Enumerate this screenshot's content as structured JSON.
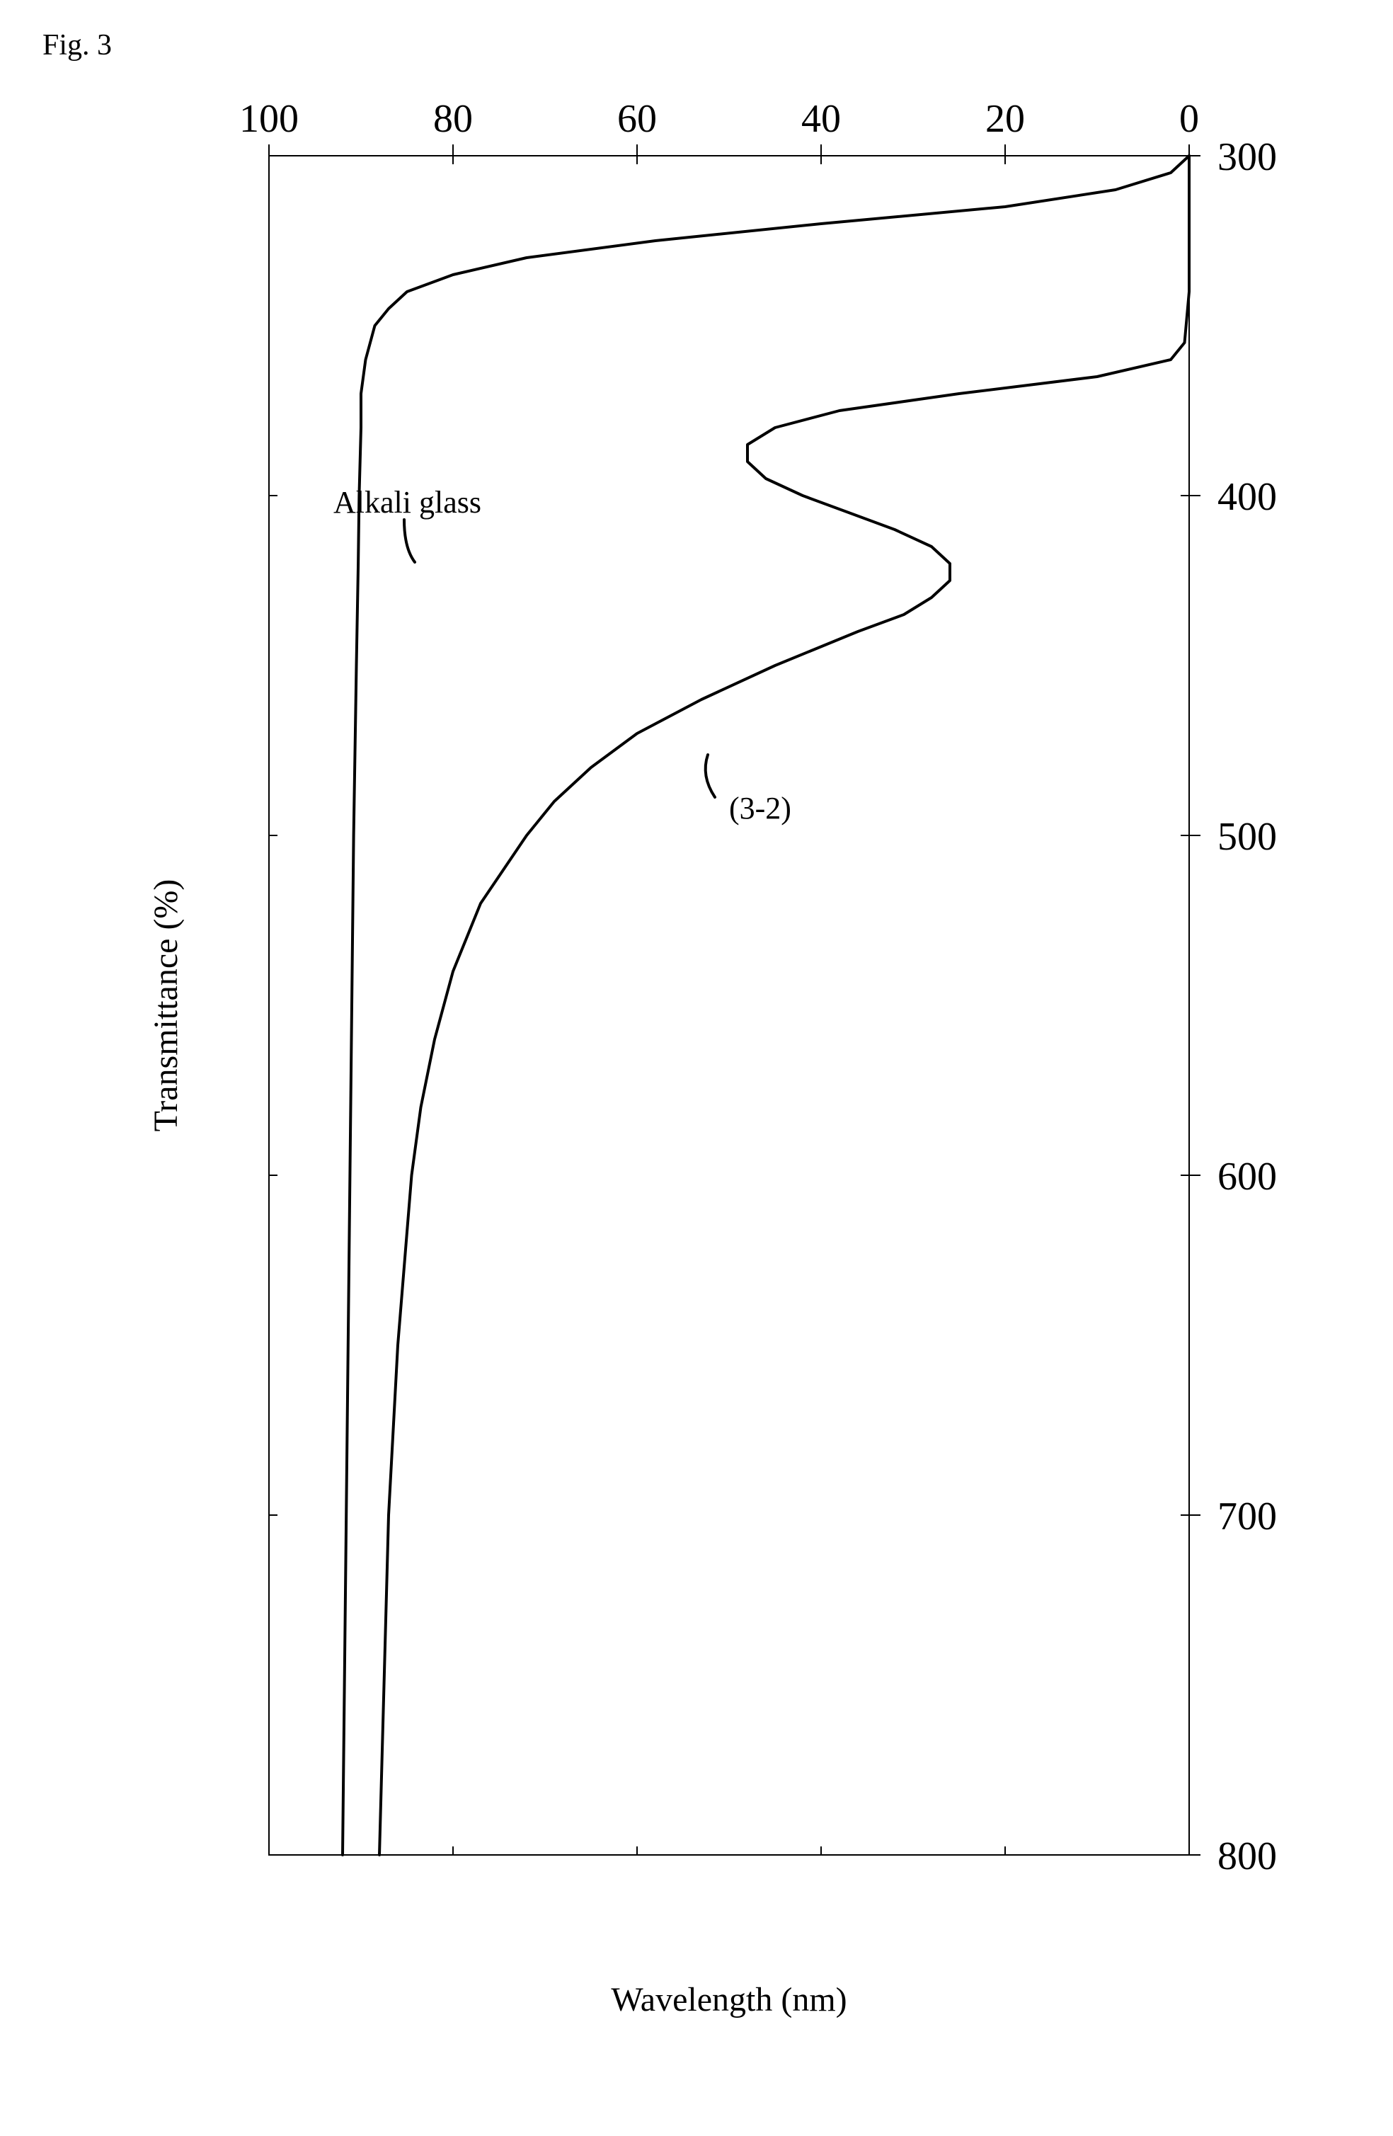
{
  "figure": {
    "label": "Fig. 3",
    "rotated": true,
    "aspect_note": "Chart is rotated 90° — x-axis (Wavelength) runs vertically in the image, y-axis (Transmittance) runs horizontally"
  },
  "chart": {
    "type": "line",
    "background_color": "#ffffff",
    "plot_border_color": "#000000",
    "plot_border_width": 2,
    "line_color": "#000000",
    "line_width": 4,
    "x_axis": {
      "label": "Wavelength (nm)",
      "label_fontsize": 48,
      "min": 300,
      "max": 800,
      "ticks": [
        300,
        400,
        500,
        600,
        700,
        800
      ],
      "tick_fontsize": 56,
      "tick_length_outer": 16,
      "tick_length_inner": 12
    },
    "y_axis": {
      "label": "Transmittance (%)",
      "label_fontsize": 48,
      "min": 0,
      "max": 100,
      "ticks": [
        0,
        20,
        40,
        60,
        80,
        100
      ],
      "tick_fontsize": 56,
      "tick_length_outer": 16,
      "tick_length_inner": 12
    },
    "series": [
      {
        "name": "Alkali glass",
        "label_x": 405,
        "label_y": 93,
        "data": [
          {
            "x": 300,
            "y": 0
          },
          {
            "x": 305,
            "y": 2
          },
          {
            "x": 310,
            "y": 8
          },
          {
            "x": 315,
            "y": 20
          },
          {
            "x": 320,
            "y": 40
          },
          {
            "x": 325,
            "y": 58
          },
          {
            "x": 330,
            "y": 72
          },
          {
            "x": 335,
            "y": 80
          },
          {
            "x": 340,
            "y": 85
          },
          {
            "x": 345,
            "y": 87
          },
          {
            "x": 350,
            "y": 88.5
          },
          {
            "x": 355,
            "y": 89
          },
          {
            "x": 360,
            "y": 89.5
          },
          {
            "x": 370,
            "y": 90
          },
          {
            "x": 380,
            "y": 90
          },
          {
            "x": 400,
            "y": 90.2
          },
          {
            "x": 420,
            "y": 90.3
          },
          {
            "x": 450,
            "y": 90.5
          },
          {
            "x": 500,
            "y": 90.8
          },
          {
            "x": 550,
            "y": 91
          },
          {
            "x": 600,
            "y": 91.2
          },
          {
            "x": 650,
            "y": 91.4
          },
          {
            "x": 700,
            "y": 91.6
          },
          {
            "x": 750,
            "y": 91.8
          },
          {
            "x": 800,
            "y": 92
          }
        ]
      },
      {
        "name": "(3-2)",
        "label_x": 495,
        "label_y": 50,
        "data": [
          {
            "x": 300,
            "y": 0
          },
          {
            "x": 320,
            "y": 0
          },
          {
            "x": 340,
            "y": 0
          },
          {
            "x": 355,
            "y": 0.5
          },
          {
            "x": 360,
            "y": 2
          },
          {
            "x": 365,
            "y": 10
          },
          {
            "x": 370,
            "y": 25
          },
          {
            "x": 375,
            "y": 38
          },
          {
            "x": 380,
            "y": 45
          },
          {
            "x": 385,
            "y": 48
          },
          {
            "x": 390,
            "y": 48
          },
          {
            "x": 395,
            "y": 46
          },
          {
            "x": 400,
            "y": 42
          },
          {
            "x": 405,
            "y": 37
          },
          {
            "x": 410,
            "y": 32
          },
          {
            "x": 415,
            "y": 28
          },
          {
            "x": 420,
            "y": 26
          },
          {
            "x": 425,
            "y": 26
          },
          {
            "x": 430,
            "y": 28
          },
          {
            "x": 435,
            "y": 31
          },
          {
            "x": 440,
            "y": 36
          },
          {
            "x": 450,
            "y": 45
          },
          {
            "x": 460,
            "y": 53
          },
          {
            "x": 470,
            "y": 60
          },
          {
            "x": 480,
            "y": 65
          },
          {
            "x": 490,
            "y": 69
          },
          {
            "x": 500,
            "y": 72
          },
          {
            "x": 520,
            "y": 77
          },
          {
            "x": 540,
            "y": 80
          },
          {
            "x": 560,
            "y": 82
          },
          {
            "x": 580,
            "y": 83.5
          },
          {
            "x": 600,
            "y": 84.5
          },
          {
            "x": 650,
            "y": 86
          },
          {
            "x": 700,
            "y": 87
          },
          {
            "x": 750,
            "y": 87.5
          },
          {
            "x": 800,
            "y": 88
          }
        ]
      }
    ]
  }
}
